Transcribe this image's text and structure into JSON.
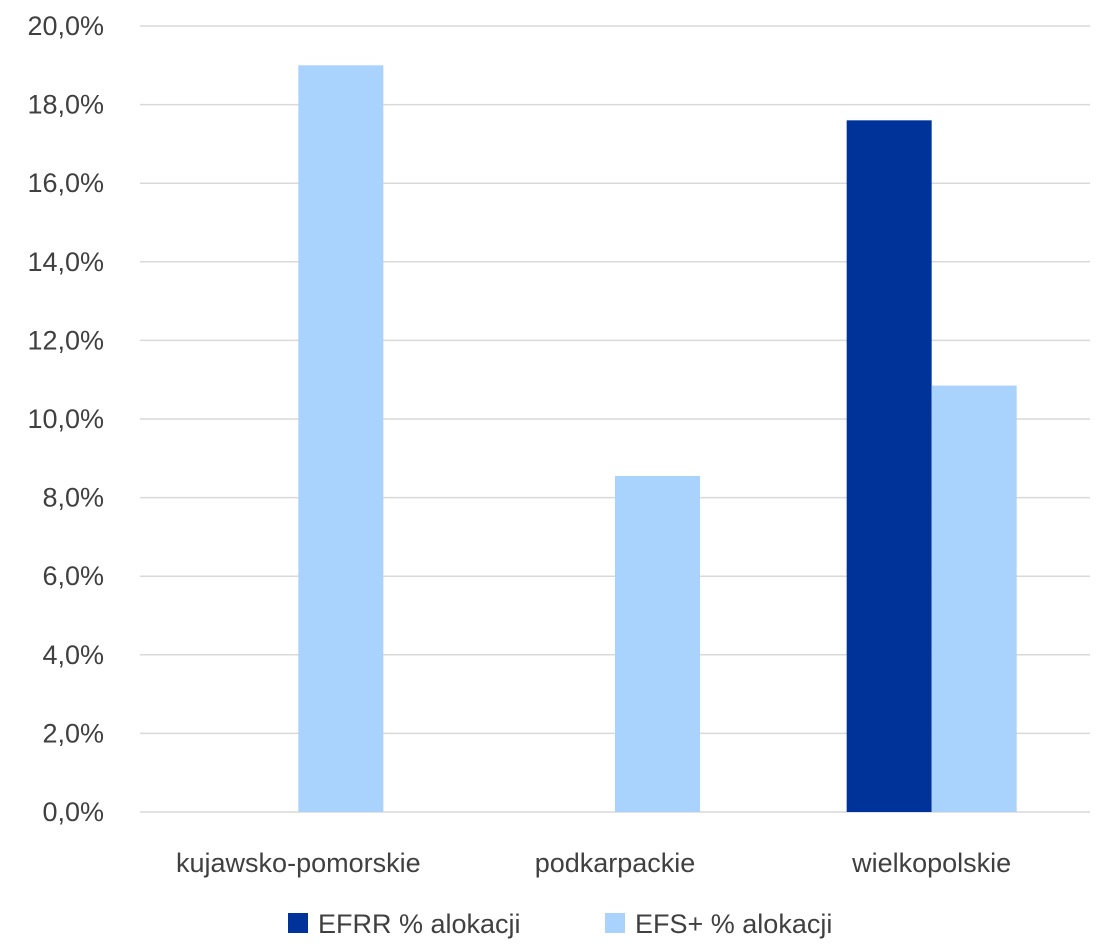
{
  "chart_data": {
    "type": "bar",
    "categories": [
      "kujawsko-pomorskie",
      "podkarpackie",
      "wielkopolskie"
    ],
    "series": [
      {
        "name": "EFRR % alokacji",
        "values": [
          0,
          0,
          17.6
        ],
        "color": "#003399"
      },
      {
        "name": "EFS+ % alokacji",
        "values": [
          19.0,
          8.55,
          10.85
        ],
        "color": "#a9d2fc"
      }
    ],
    "ylim": [
      0,
      20
    ],
    "yticks": [
      "0,0%",
      "2,0%",
      "4,0%",
      "6,0%",
      "8,0%",
      "10,0%",
      "12,0%",
      "14,0%",
      "16,0%",
      "18,0%",
      "20,0%"
    ],
    "grid": true,
    "legend": "bottom"
  }
}
